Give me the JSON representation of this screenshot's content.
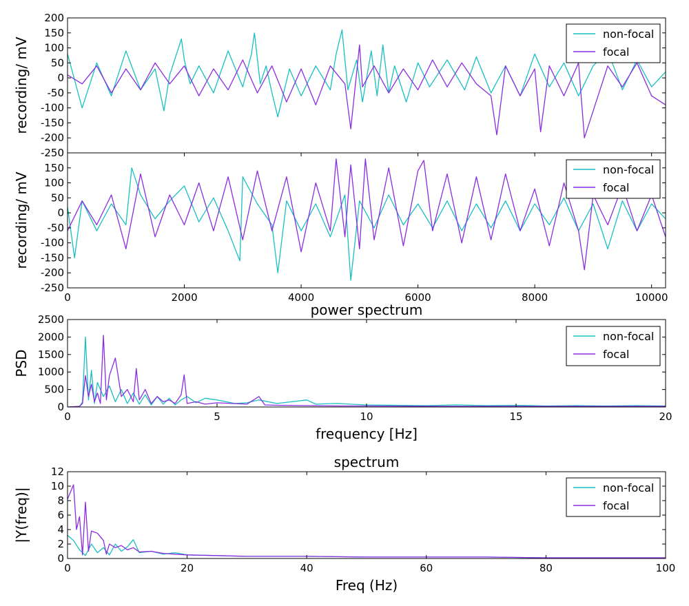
{
  "colors": {
    "non_focal": "#17bfc0",
    "focal": "#8a2be2",
    "axes": "#000000",
    "background": "#ffffff"
  },
  "legend_labels": {
    "non_focal": "non-focal",
    "focal": "focal"
  },
  "chart_data": [
    {
      "type": "line",
      "title": "",
      "xlabel": "",
      "ylabel": "recording/ mV",
      "xlim": [
        0,
        10240
      ],
      "ylim": [
        -250,
        200
      ],
      "xticks": [],
      "yticks": [
        -250,
        -200,
        -150,
        -100,
        -50,
        0,
        50,
        100,
        150,
        200
      ],
      "grid": false,
      "legend_position": "top-right",
      "series": [
        {
          "name": "non-focal",
          "color": "#17bfc0",
          "x": [
            0,
            250,
            500,
            750,
            1000,
            1250,
            1500,
            1650,
            1750,
            1900,
            1950,
            2000,
            2100,
            2250,
            2500,
            2750,
            3000,
            3150,
            3200,
            3300,
            3400,
            3500,
            3600,
            3800,
            4000,
            4250,
            4500,
            4600,
            4700,
            4800,
            4950,
            5050,
            5200,
            5300,
            5400,
            5500,
            5600,
            5800,
            6000,
            6200,
            6500,
            6800,
            7000,
            7250,
            7500,
            7750,
            8000,
            8250,
            8500,
            8750,
            9000,
            9250,
            9500,
            9750,
            10000,
            10240
          ],
          "y": [
            80,
            -100,
            50,
            -60,
            90,
            -40,
            30,
            -110,
            10,
            100,
            130,
            60,
            -20,
            40,
            -50,
            90,
            -30,
            80,
            150,
            -20,
            40,
            -50,
            -130,
            30,
            -60,
            40,
            -40,
            80,
            160,
            -40,
            60,
            -80,
            90,
            -60,
            110,
            -50,
            40,
            -80,
            50,
            -30,
            60,
            -40,
            70,
            -50,
            40,
            -60,
            80,
            -30,
            50,
            -60,
            40,
            90,
            -40,
            60,
            -30,
            20
          ]
        },
        {
          "name": "focal",
          "color": "#8a2be2",
          "x": [
            0,
            250,
            500,
            750,
            1000,
            1250,
            1500,
            1750,
            2000,
            2250,
            2500,
            2750,
            3000,
            3250,
            3500,
            3750,
            4000,
            4250,
            4500,
            4750,
            4850,
            5000,
            5050,
            5250,
            5500,
            5750,
            6000,
            6250,
            6500,
            6750,
            7000,
            7250,
            7350,
            7500,
            7750,
            8000,
            8100,
            8250,
            8500,
            8750,
            8850,
            8950,
            9250,
            9500,
            9750,
            10000,
            10240
          ],
          "y": [
            10,
            -20,
            40,
            -50,
            30,
            -40,
            50,
            -20,
            40,
            -60,
            30,
            -40,
            60,
            -50,
            40,
            -80,
            30,
            -90,
            40,
            -20,
            -170,
            110,
            -30,
            40,
            -50,
            30,
            -40,
            60,
            -30,
            50,
            -20,
            -60,
            -190,
            40,
            -60,
            30,
            -180,
            40,
            -60,
            50,
            -200,
            -140,
            40,
            -30,
            50,
            -60,
            -90
          ]
        }
      ]
    },
    {
      "type": "line",
      "title": "",
      "xlabel": "",
      "ylabel": "recording/ mV",
      "xlim": [
        0,
        10240
      ],
      "ylim": [
        -250,
        200
      ],
      "xticks": [
        0,
        2000,
        4000,
        6000,
        8000,
        10000
      ],
      "yticks": [
        -250,
        -200,
        -150,
        -100,
        -50,
        0,
        50,
        100,
        150
      ],
      "grid": false,
      "legend_position": "top-right",
      "series": [
        {
          "name": "non-focal",
          "color": "#17bfc0",
          "x": [
            0,
            120,
            250,
            500,
            750,
            1000,
            1100,
            1250,
            1500,
            1750,
            2000,
            2250,
            2500,
            2750,
            2950,
            3000,
            3250,
            3500,
            3600,
            3750,
            4000,
            4250,
            4500,
            4750,
            4850,
            5000,
            5250,
            5500,
            5750,
            6000,
            6250,
            6500,
            6750,
            7000,
            7250,
            7500,
            7750,
            8000,
            8250,
            8500,
            8750,
            9000,
            9250,
            9500,
            9750,
            10000,
            10240
          ],
          "y": [
            20,
            -150,
            40,
            -60,
            30,
            -40,
            150,
            60,
            -20,
            40,
            90,
            -30,
            50,
            -60,
            -160,
            120,
            30,
            -40,
            -200,
            40,
            -60,
            30,
            -80,
            60,
            -225,
            40,
            -50,
            60,
            -40,
            30,
            -50,
            40,
            -60,
            30,
            -50,
            40,
            -60,
            30,
            -40,
            50,
            -60,
            30,
            -120,
            40,
            -60,
            30,
            -20
          ]
        },
        {
          "name": "focal",
          "color": "#8a2be2",
          "x": [
            0,
            250,
            500,
            750,
            1000,
            1250,
            1500,
            1750,
            2000,
            2250,
            2500,
            2750,
            3000,
            3250,
            3500,
            3750,
            4000,
            4250,
            4500,
            4600,
            4750,
            4850,
            5000,
            5100,
            5250,
            5500,
            5750,
            6000,
            6100,
            6250,
            6500,
            6750,
            7000,
            7250,
            7500,
            7750,
            8000,
            8250,
            8500,
            8750,
            8850,
            9000,
            9250,
            9500,
            9750,
            10000,
            10240
          ],
          "y": [
            -60,
            40,
            -40,
            60,
            -120,
            130,
            -80,
            60,
            -40,
            100,
            -60,
            120,
            -90,
            140,
            -60,
            120,
            -130,
            100,
            -60,
            180,
            -80,
            160,
            -120,
            180,
            -90,
            150,
            -110,
            140,
            175,
            -60,
            130,
            -100,
            120,
            -90,
            130,
            -60,
            80,
            -110,
            100,
            -60,
            -190,
            60,
            -40,
            90,
            -60,
            60,
            -80
          ]
        }
      ]
    },
    {
      "type": "line",
      "title": "power spectrum",
      "xlabel": "frequency [Hz]",
      "ylabel": "PSD",
      "xlim": [
        0,
        20
      ],
      "ylim": [
        0,
        2500
      ],
      "xticks": [
        0,
        5,
        10,
        15,
        20
      ],
      "yticks": [
        0,
        500,
        1000,
        1500,
        2000,
        2500
      ],
      "grid": false,
      "legend_position": "top-right",
      "series": [
        {
          "name": "non-focal",
          "color": "#17bfc0",
          "x": [
            0,
            0.4,
            0.5,
            0.6,
            0.7,
            0.8,
            0.9,
            1.0,
            1.2,
            1.4,
            1.6,
            1.8,
            2.0,
            2.2,
            2.4,
            2.6,
            2.8,
            3.0,
            3.2,
            3.4,
            3.6,
            3.8,
            4.0,
            4.3,
            4.6,
            5.0,
            5.3,
            5.6,
            6.0,
            6.4,
            7.0,
            7.5,
            8.0,
            8.3,
            9.0,
            10.0,
            11.0,
            12.0,
            13.0,
            14.0,
            15.0,
            16.0,
            17.0,
            18.0,
            19.0,
            20.0
          ],
          "y": [
            0,
            10,
            150,
            2000,
            200,
            1050,
            100,
            700,
            300,
            600,
            150,
            500,
            100,
            400,
            80,
            350,
            60,
            300,
            80,
            250,
            60,
            200,
            300,
            120,
            250,
            200,
            150,
            100,
            120,
            200,
            100,
            150,
            200,
            80,
            100,
            60,
            50,
            40,
            60,
            40,
            50,
            30,
            40,
            30,
            40,
            30
          ]
        },
        {
          "name": "focal",
          "color": "#8a2be2",
          "x": [
            0,
            0.4,
            0.5,
            0.6,
            0.7,
            0.8,
            0.9,
            1.0,
            1.1,
            1.2,
            1.3,
            1.4,
            1.6,
            1.8,
            2.0,
            2.2,
            2.3,
            2.4,
            2.6,
            2.8,
            3.0,
            3.2,
            3.4,
            3.6,
            3.8,
            3.9,
            4.0,
            4.3,
            4.6,
            5.0,
            5.5,
            6.0,
            6.4,
            6.6,
            7.0,
            8.0,
            9.0,
            10.0,
            12.0,
            15.0,
            18.0,
            20.0
          ],
          "y": [
            0,
            20,
            100,
            900,
            300,
            650,
            150,
            400,
            100,
            2050,
            200,
            900,
            1400,
            300,
            500,
            150,
            1100,
            200,
            500,
            100,
            300,
            150,
            200,
            100,
            350,
            920,
            100,
            150,
            80,
            120,
            100,
            80,
            300,
            60,
            50,
            40,
            30,
            30,
            20,
            20,
            20,
            20
          ]
        }
      ]
    },
    {
      "type": "line",
      "title": "spectrum",
      "xlabel": "Freq (Hz)",
      "ylabel": "|Y(freq)|",
      "xlim": [
        0,
        100
      ],
      "ylim": [
        0,
        12
      ],
      "xticks": [
        0,
        20,
        40,
        60,
        80,
        100
      ],
      "yticks": [
        0,
        2,
        4,
        6,
        8,
        10,
        12
      ],
      "grid": false,
      "legend_position": "top-right",
      "series": [
        {
          "name": "non-focal",
          "color": "#17bfc0",
          "x": [
            0,
            1,
            2,
            3,
            4,
            5,
            6,
            7,
            8,
            9,
            10,
            11,
            12,
            14,
            16,
            18,
            20,
            25,
            30,
            40,
            50,
            60,
            70,
            80,
            90,
            100
          ],
          "y": [
            3.2,
            2.5,
            1.2,
            0.4,
            2.0,
            0.8,
            1.5,
            0.5,
            2.0,
            1.0,
            1.6,
            2.6,
            0.8,
            1.0,
            0.6,
            0.8,
            0.5,
            0.4,
            0.3,
            0.3,
            0.2,
            0.2,
            0.2,
            0.1,
            0.1,
            0.1
          ]
        },
        {
          "name": "focal",
          "color": "#8a2be2",
          "x": [
            0,
            1,
            1.5,
            2,
            2.5,
            3,
            3.5,
            4,
            5,
            6,
            6.5,
            7,
            8,
            9,
            10,
            11,
            12,
            14,
            16,
            18,
            20,
            25,
            30,
            40,
            50,
            60,
            70,
            80,
            90,
            100
          ],
          "y": [
            8.2,
            10.2,
            4.0,
            5.8,
            0.5,
            7.8,
            1.0,
            3.8,
            3.5,
            2.5,
            0.6,
            2.0,
            1.5,
            1.8,
            1.2,
            1.5,
            0.9,
            1.0,
            0.7,
            0.6,
            0.5,
            0.4,
            0.3,
            0.3,
            0.2,
            0.2,
            0.2,
            0.1,
            0.1,
            0.1
          ]
        }
      ]
    }
  ]
}
